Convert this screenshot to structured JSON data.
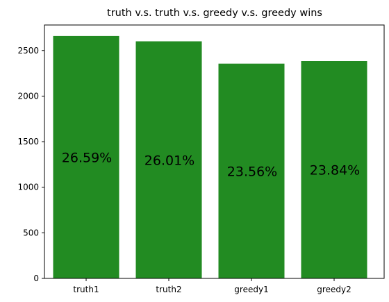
{
  "chart_data": {
    "type": "bar",
    "title": "truth v.s. truth v.s. greedy v.s. greedy wins",
    "xlabel": "",
    "ylabel": "",
    "categories": [
      "truth1",
      "truth2",
      "greedy1",
      "greedy2"
    ],
    "values": [
      2659,
      2601,
      2356,
      2384
    ],
    "data_labels": [
      "26.59%",
      "26.01%",
      "23.56%",
      "23.84%"
    ],
    "ylim": [
      0,
      2780
    ],
    "yticks": [
      0,
      500,
      1000,
      1500,
      2000,
      2500
    ],
    "bar_color": "#228b22",
    "grid": false,
    "legend": "none"
  }
}
